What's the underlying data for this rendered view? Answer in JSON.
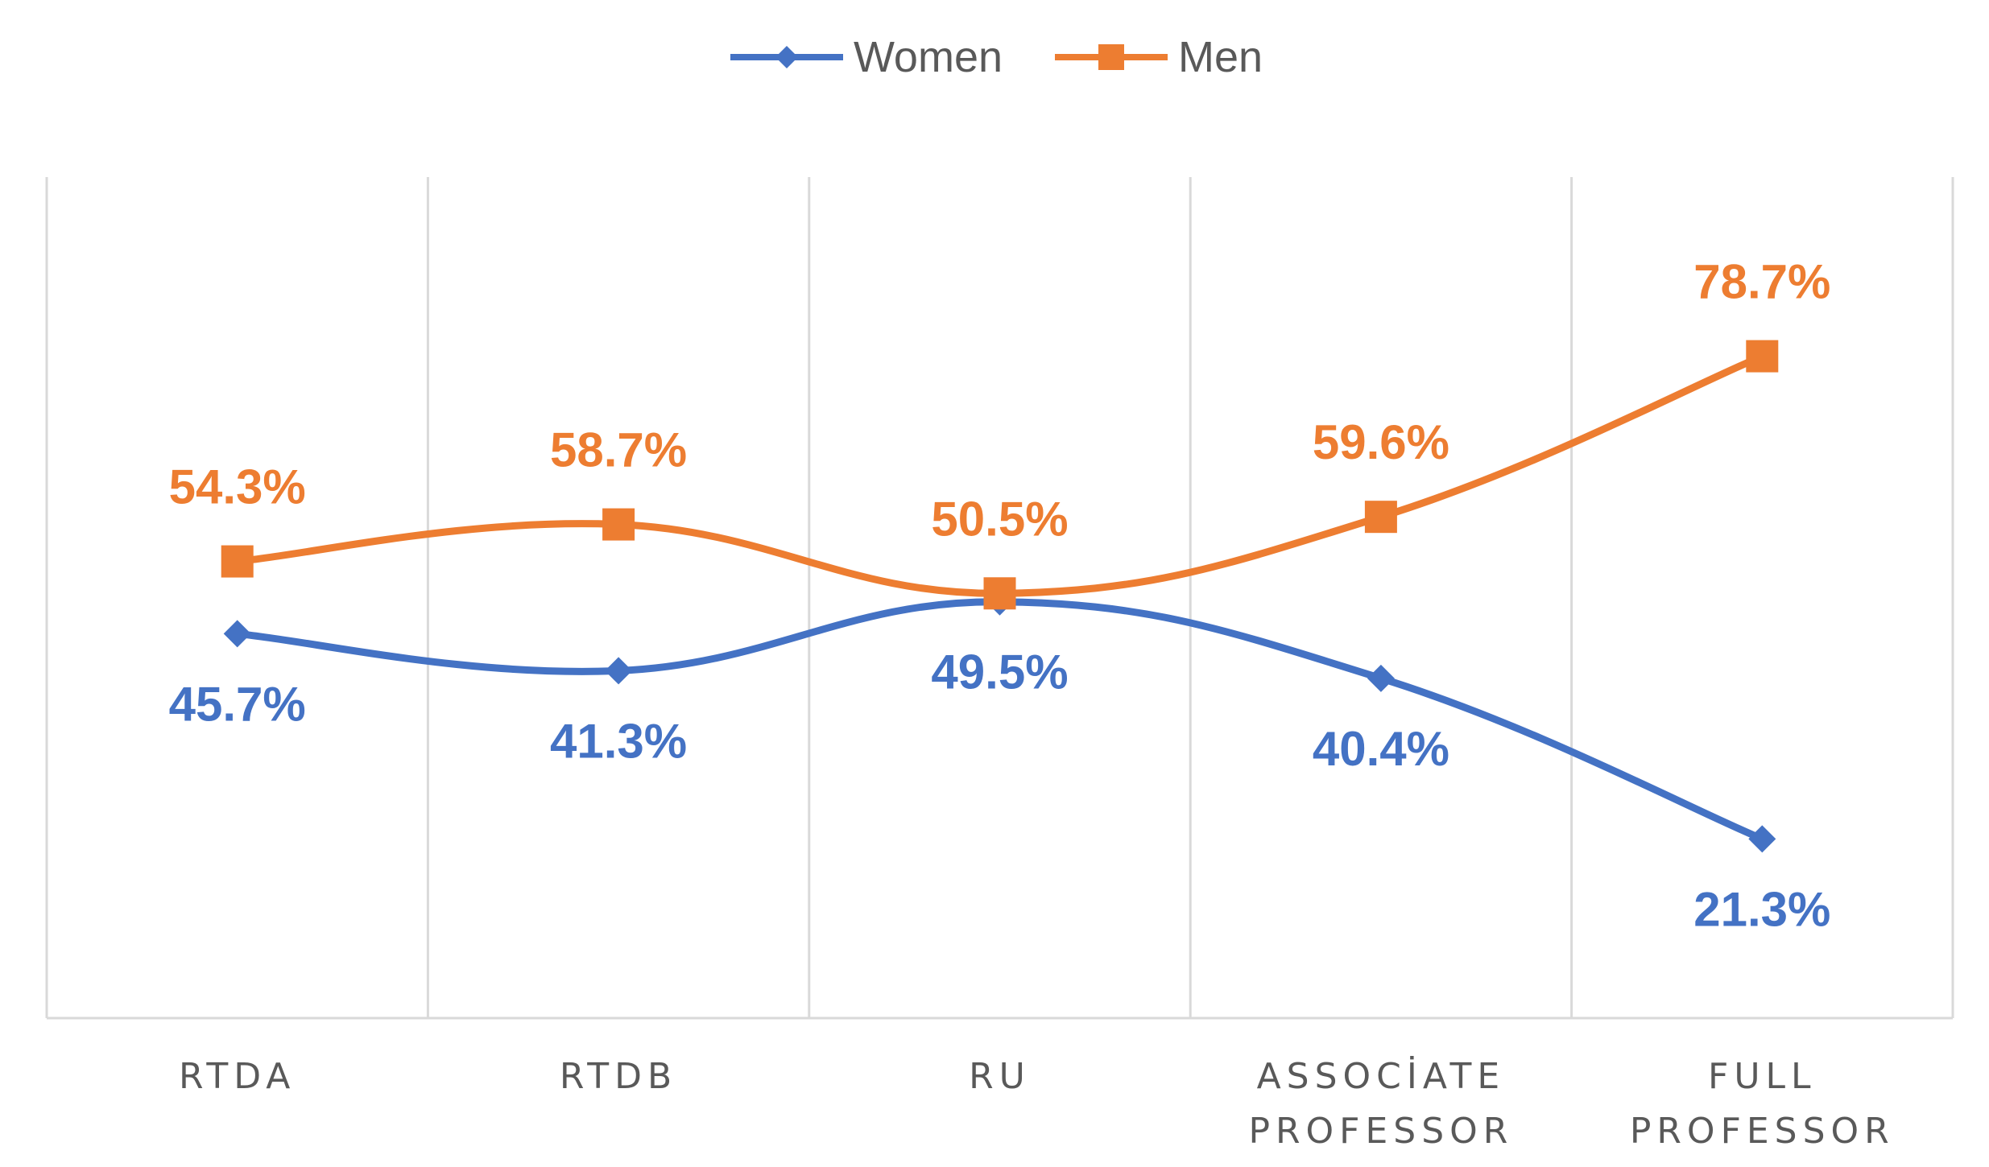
{
  "chart_data": {
    "type": "line",
    "title": "",
    "xlabel": "",
    "ylabel": "",
    "ylim": [
      0,
      100
    ],
    "grid": {
      "vertical": true,
      "horizontal": false
    },
    "legend_position": "top-center",
    "categories": [
      [
        "RTDA"
      ],
      [
        "RTDB"
      ],
      [
        "RU"
      ],
      [
        "ASSOCİATE",
        "PROFESSOR"
      ],
      [
        "FULL",
        "PROFESSOR"
      ]
    ],
    "series": [
      {
        "name": "Women",
        "marker": "diamond",
        "color": "#4472C4",
        "values": [
          45.7,
          41.3,
          49.5,
          40.4,
          21.3
        ],
        "labels": [
          "45.7%",
          "41.3%",
          "49.5%",
          "40.4%",
          "21.3%"
        ],
        "label_position": "below"
      },
      {
        "name": "Men",
        "marker": "square",
        "color": "#ED7D31",
        "values": [
          54.3,
          58.7,
          50.5,
          59.6,
          78.7
        ],
        "labels": [
          "54.3%",
          "58.7%",
          "50.5%",
          "59.6%",
          "78.7%"
        ],
        "label_position": "above"
      }
    ]
  }
}
